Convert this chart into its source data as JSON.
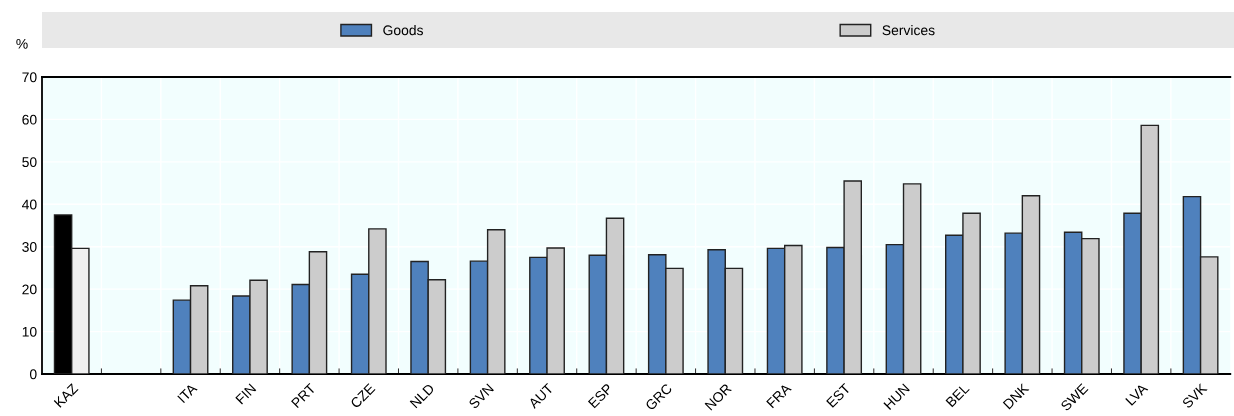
{
  "chart_data": {
    "type": "bar",
    "ylabel": "%",
    "categories": [
      "KAZ",
      null,
      "ITA",
      "FIN",
      "PRT",
      "CZE",
      "NLD",
      "SVN",
      "AUT",
      "ESP",
      "GRC",
      "NOR",
      "FRA",
      "EST",
      "HUN",
      "BEL",
      "DNK",
      "SWE",
      "LVA",
      "SVK"
    ],
    "series": [
      {
        "name": "Goods",
        "color": "#4f81bd",
        "colors": [
          "#000000",
          null,
          "#4f81bd",
          "#4f81bd",
          "#4f81bd",
          "#4f81bd",
          "#4f81bd",
          "#4f81bd",
          "#4f81bd",
          "#4f81bd",
          "#4f81bd",
          "#4f81bd",
          "#4f81bd",
          "#4f81bd",
          "#4f81bd",
          "#4f81bd",
          "#4f81bd",
          "#4f81bd",
          "#4f81bd",
          "#4f81bd"
        ],
        "values": [
          37.5,
          null,
          17.4,
          18.4,
          21.1,
          23.5,
          26.5,
          26.6,
          27.5,
          28.0,
          28.1,
          29.3,
          29.6,
          29.8,
          30.5,
          32.7,
          33.2,
          33.4,
          37.9,
          41.8
        ]
      },
      {
        "name": "Services",
        "color": "#cccccc",
        "colors": [
          "#f0f0f0",
          null,
          "#cccccc",
          "#cccccc",
          "#cccccc",
          "#cccccc",
          "#cccccc",
          "#cccccc",
          "#cccccc",
          "#cccccc",
          "#cccccc",
          "#cccccc",
          "#cccccc",
          "#cccccc",
          "#cccccc",
          "#cccccc",
          "#cccccc",
          "#cccccc",
          "#cccccc",
          "#cccccc"
        ],
        "values": [
          29.6,
          null,
          20.8,
          22.1,
          28.8,
          34.2,
          22.2,
          34.0,
          29.7,
          36.7,
          24.9,
          24.9,
          30.3,
          45.5,
          44.8,
          37.9,
          42.0,
          31.9,
          58.6,
          27.6
        ]
      }
    ],
    "ylim": [
      0,
      70
    ],
    "yticks": [
      0,
      10,
      20,
      30,
      40,
      50,
      60,
      70
    ],
    "grid": true,
    "legend": "top"
  }
}
